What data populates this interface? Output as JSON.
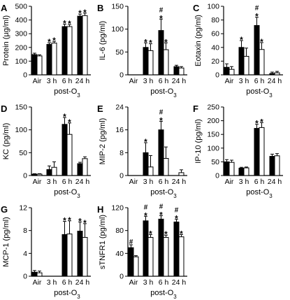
{
  "post_label": "post-O",
  "post_label_sub": "3",
  "colors": {
    "filled": "#000000",
    "open": "#ffffff",
    "axis": "#000000"
  },
  "chart_data": [
    {
      "id": "A",
      "type": "bar",
      "ylabel": "Protein (µg/ml)",
      "ylim": [
        0,
        500
      ],
      "yticks": [
        0,
        100,
        200,
        300,
        400,
        500
      ],
      "categories": [
        "Air",
        "3 h",
        "6 h",
        "24 h"
      ],
      "series": [
        {
          "values": [
            148,
            222,
            352,
            428
          ],
          "errors": [
            10,
            12,
            18,
            15
          ]
        },
        {
          "values": [
            138,
            232,
            352,
            432
          ],
          "errors": [
            8,
            12,
            15,
            18
          ]
        }
      ],
      "marks": [
        [
          "",
          ""
        ],
        [
          "*",
          "*"
        ],
        [
          "*",
          "*"
        ],
        [
          "*",
          "*"
        ]
      ],
      "hash_marks": [
        [
          "",
          ""
        ],
        [
          "",
          ""
        ],
        [
          "",
          ""
        ],
        [
          "",
          ""
        ]
      ]
    },
    {
      "id": "B",
      "type": "bar",
      "ylabel": "IL-6 (pg/ml)",
      "ylim": [
        0,
        150
      ],
      "yticks": [
        0,
        50,
        100,
        150
      ],
      "categories": [
        "Air",
        "3 h",
        "6 h",
        "24 h"
      ],
      "series": [
        {
          "values": [
            0,
            60,
            97,
            18
          ],
          "errors": [
            0,
            10,
            25,
            3
          ]
        },
        {
          "values": [
            0,
            53,
            55,
            15
          ],
          "errors": [
            0,
            15,
            15,
            3
          ]
        }
      ],
      "marks": [
        [
          "",
          ""
        ],
        [
          "*",
          "*"
        ],
        [
          "*",
          "*"
        ],
        [
          "",
          ""
        ]
      ],
      "hash_marks": [
        [
          "",
          ""
        ],
        [
          "",
          ""
        ],
        [
          "#",
          ""
        ],
        [
          "",
          ""
        ]
      ]
    },
    {
      "id": "C",
      "type": "bar",
      "ylabel": "Eotaxin (pg/ml)",
      "ylim": [
        0,
        100
      ],
      "yticks": [
        0,
        20,
        40,
        60,
        80,
        100
      ],
      "categories": [
        "Air",
        "3 h",
        "6 h",
        "24 h"
      ],
      "series": [
        {
          "values": [
            11,
            40,
            72,
            2
          ],
          "errors": [
            5,
            10,
            12,
            2
          ]
        },
        {
          "values": [
            8,
            27,
            37,
            3
          ],
          "errors": [
            4,
            12,
            10,
            2
          ]
        }
      ],
      "marks": [
        [
          "",
          ""
        ],
        [
          "*",
          ""
        ],
        [
          "*",
          "*"
        ],
        [
          "",
          ""
        ]
      ],
      "hash_marks": [
        [
          "",
          ""
        ],
        [
          "",
          ""
        ],
        [
          "#",
          ""
        ],
        [
          "",
          ""
        ]
      ]
    },
    {
      "id": "D",
      "type": "bar",
      "ylabel": "KC (pg/ml)",
      "ylim": [
        0,
        150
      ],
      "yticks": [
        0,
        50,
        100,
        150
      ],
      "categories": [
        "Air",
        "3 h",
        "6 h",
        "24 h"
      ],
      "series": [
        {
          "values": [
            3,
            13,
            112,
            26
          ],
          "errors": [
            1,
            8,
            15,
            3
          ]
        },
        {
          "values": [
            3,
            18,
            90,
            37
          ],
          "errors": [
            1,
            12,
            25,
            4
          ]
        }
      ],
      "marks": [
        [
          "",
          ""
        ],
        [
          "",
          ""
        ],
        [
          "*",
          "*"
        ],
        [
          "",
          ""
        ]
      ],
      "hash_marks": [
        [
          "",
          ""
        ],
        [
          "",
          ""
        ],
        [
          "",
          ""
        ],
        [
          "",
          ""
        ]
      ]
    },
    {
      "id": "E",
      "type": "bar",
      "ylabel": "MIP-2 (pg/ml)",
      "ylim": [
        0,
        24
      ],
      "yticks": [
        0,
        8,
        16,
        24
      ],
      "categories": [
        "Air",
        "3 h",
        "6 h",
        "24 h"
      ],
      "series": [
        {
          "values": [
            0,
            8,
            16,
            0
          ],
          "errors": [
            0,
            3.5,
            3,
            0
          ]
        },
        {
          "values": [
            0,
            3,
            6,
            1
          ],
          "errors": [
            0,
            4,
            4,
            1
          ]
        }
      ],
      "marks": [
        [
          "",
          ""
        ],
        [
          "*",
          ""
        ],
        [
          "*",
          ""
        ],
        [
          "",
          ""
        ]
      ],
      "hash_marks": [
        [
          "",
          ""
        ],
        [
          "",
          ""
        ],
        [
          "#",
          ""
        ],
        [
          "",
          ""
        ]
      ]
    },
    {
      "id": "F",
      "type": "bar",
      "ylabel": "IP-10 (pg/ml)",
      "ylim": [
        0,
        250
      ],
      "yticks": [
        0,
        50,
        100,
        150,
        200,
        250
      ],
      "categories": [
        "Air",
        "3 h",
        "6 h",
        "24 h"
      ],
      "series": [
        {
          "values": [
            50,
            27,
            172,
            70
          ],
          "errors": [
            8,
            3,
            15,
            8
          ]
        },
        {
          "values": [
            48,
            28,
            175,
            72
          ],
          "errors": [
            8,
            3,
            18,
            8
          ]
        }
      ],
      "marks": [
        [
          "",
          ""
        ],
        [
          "",
          ""
        ],
        [
          "*",
          "*"
        ],
        [
          "",
          ""
        ]
      ],
      "hash_marks": [
        [
          "",
          ""
        ],
        [
          "",
          ""
        ],
        [
          "",
          ""
        ],
        [
          "",
          ""
        ]
      ]
    },
    {
      "id": "G",
      "type": "bar",
      "ylabel": "MCP-1 (pg/ml)",
      "ylim": [
        0,
        12
      ],
      "yticks": [
        0,
        4,
        8,
        12
      ],
      "categories": [
        "Air",
        "3 h",
        "6 h",
        "24 h"
      ],
      "series": [
        {
          "values": [
            0.7,
            0,
            7.3,
            7.9
          ],
          "errors": [
            0.3,
            0,
            2.3,
            1.6
          ]
        },
        {
          "values": [
            0.6,
            0,
            7.4,
            6.8
          ],
          "errors": [
            0.3,
            0,
            2.3,
            2.4
          ]
        }
      ],
      "marks": [
        [
          "",
          ""
        ],
        [
          "",
          ""
        ],
        [
          "*",
          "*"
        ],
        [
          "*",
          "*"
        ]
      ],
      "hash_marks": [
        [
          "",
          ""
        ],
        [
          "",
          ""
        ],
        [
          "",
          ""
        ],
        [
          "",
          ""
        ]
      ]
    },
    {
      "id": "H",
      "type": "bar",
      "ylabel": "sTNFR1 (pg/ml)",
      "ylim": [
        0,
        120
      ],
      "yticks": [
        0,
        40,
        80,
        120
      ],
      "categories": [
        "Air",
        "3 h",
        "6 h",
        "24 h"
      ],
      "series": [
        {
          "values": [
            50,
            97,
            100,
            95
          ],
          "errors": [
            5,
            8,
            6,
            5
          ]
        },
        {
          "values": [
            34,
            68,
            68,
            69
          ],
          "errors": [
            2,
            5,
            4,
            4
          ]
        }
      ],
      "marks": [
        [
          "",
          ""
        ],
        [
          "*",
          "*"
        ],
        [
          "*",
          "*"
        ],
        [
          "*",
          "*"
        ]
      ],
      "hash_marks": [
        [
          "#",
          ""
        ],
        [
          "#",
          ""
        ],
        [
          "#",
          ""
        ],
        [
          "#",
          ""
        ]
      ]
    }
  ]
}
